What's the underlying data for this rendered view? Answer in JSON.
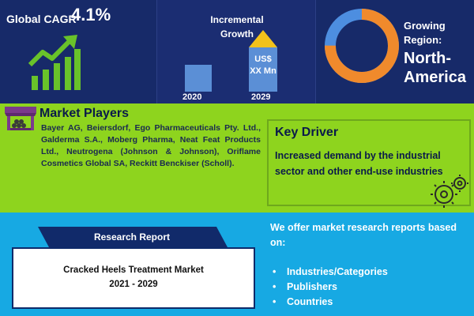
{
  "cagr": {
    "label": "Global CAGR",
    "value": "4.1%"
  },
  "incremental": {
    "title_line1": "Incremental",
    "title_line2": "Growth",
    "value_line1": "US$",
    "value_line2": "XX Mn",
    "year_start": "2020",
    "year_end": "2029"
  },
  "region": {
    "label_line1": "Growing",
    "label_line2": "Region:",
    "value_line1": "North-",
    "value_line2": "America",
    "donut_share": 0.75
  },
  "players": {
    "title": "Market Players",
    "text": "Bayer AG, Beiersdorf, Ego Pharmaceuticals Pty. Ltd., Galderma S.A., Moberg Pharma, Neat Feat Products Ltd., Neutrogena (Johnson & Johnson), Oriflame Cosmetics Global SA, Reckitt Benckiser (Scholl)."
  },
  "driver": {
    "title": "Key Driver",
    "text": "Increased demand by the industrial sector and other end-use industries"
  },
  "report": {
    "banner_label": "Research Report",
    "title_line1": "Cracked Heels Treatment Market",
    "title_line2": "2021 - 2029"
  },
  "offer": {
    "intro": "We offer market research reports based on:",
    "bullet": "•",
    "items": [
      "Industries/Categories",
      "Publishers",
      "Countries"
    ]
  },
  "colors": {
    "navy": "#172a69",
    "green": "#8ed41e",
    "blue": "#17a9e3",
    "donut_orange": "#f08a2c",
    "donut_blue": "#4d8ee0"
  }
}
